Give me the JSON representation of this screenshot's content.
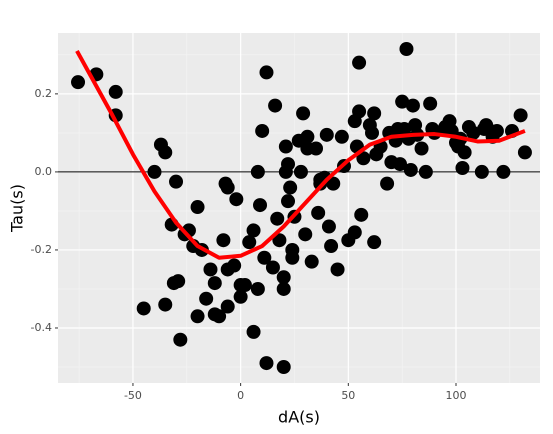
{
  "chart_data": {
    "type": "scatter",
    "x_label": "dA(s)",
    "y_label": "Tau(s)",
    "xlim": [
      -84.8,
      139
    ],
    "ylim": [
      -0.541,
      0.356
    ],
    "xticks": [
      -50,
      0,
      50,
      100
    ],
    "yticks": [
      -0.4,
      -0.2,
      {
        "value": 0,
        "label": "0.0"
      },
      0.2
    ],
    "xminor": [
      -75,
      -25,
      25,
      75,
      125
    ],
    "yminor": [
      -0.5,
      -0.3,
      -0.1,
      0.1,
      0.3
    ],
    "grid": true,
    "hline": 0,
    "points": {
      "color": "#000000",
      "x": [
        -75.5,
        -67,
        -58,
        -58,
        -45,
        -40,
        -37,
        -35,
        -35,
        -32,
        -31,
        -30,
        -29,
        -28,
        -26,
        -24,
        -22,
        -20,
        -20,
        -18,
        -16,
        -14,
        -12,
        -12,
        -10,
        -8,
        -7,
        -6,
        -6,
        -6,
        -3,
        -2,
        0,
        0,
        2,
        4,
        6,
        6,
        8,
        8,
        9,
        10,
        11,
        12,
        12,
        15,
        16,
        17,
        18,
        20,
        20,
        20,
        21,
        21,
        22,
        22,
        23,
        24,
        24,
        25,
        27,
        28,
        29,
        30,
        31,
        31,
        33,
        35,
        36,
        37,
        37,
        39,
        40,
        41,
        42,
        43,
        45,
        47,
        48,
        50,
        53,
        53,
        54,
        55,
        55,
        56,
        57,
        60,
        61,
        62,
        62,
        63,
        65,
        68,
        69,
        70,
        72,
        73,
        74,
        75,
        76,
        77,
        78,
        79,
        80,
        81,
        82,
        84,
        86,
        88,
        89,
        90,
        95,
        97,
        98,
        100,
        101,
        102,
        103,
        104,
        106,
        108,
        112,
        113,
        114,
        116,
        117,
        119,
        122,
        126,
        130,
        132
      ],
      "values": [
        0.23,
        0.25,
        0.205,
        0.145,
        -0.35,
        0.0,
        0.07,
        0.05,
        -0.34,
        -0.135,
        -0.285,
        -0.025,
        -0.28,
        -0.43,
        -0.16,
        -0.15,
        -0.19,
        -0.09,
        -0.37,
        -0.2,
        -0.325,
        -0.25,
        -0.285,
        -0.365,
        -0.37,
        -0.175,
        -0.03,
        -0.25,
        -0.04,
        -0.345,
        -0.24,
        -0.07,
        -0.29,
        -0.32,
        -0.29,
        -0.18,
        -0.41,
        -0.15,
        0.0,
        -0.3,
        -0.085,
        0.105,
        -0.22,
        0.255,
        -0.49,
        -0.245,
        0.17,
        -0.12,
        -0.175,
        -0.3,
        -0.27,
        -0.5,
        0.065,
        0.0,
        0.02,
        -0.075,
        -0.04,
        -0.2,
        -0.22,
        -0.115,
        0.08,
        0.0,
        0.15,
        -0.16,
        0.06,
        0.09,
        -0.23,
        0.06,
        -0.105,
        -0.02,
        -0.03,
        -0.015,
        0.095,
        -0.14,
        -0.19,
        -0.03,
        -0.25,
        0.09,
        0.015,
        -0.175,
        -0.155,
        0.13,
        0.065,
        0.155,
        0.28,
        -0.11,
        0.035,
        0.12,
        0.1,
        0.15,
        -0.18,
        0.045,
        0.065,
        -0.03,
        0.1,
        0.025,
        0.08,
        0.11,
        0.02,
        0.18,
        0.11,
        0.315,
        0.085,
        0.005,
        0.17,
        0.12,
        0.095,
        0.06,
        0.0,
        0.175,
        0.11,
        0.1,
        0.115,
        0.13,
        0.105,
        0.075,
        0.065,
        0.085,
        0.01,
        0.05,
        0.115,
        0.1,
        0.0,
        0.11,
        0.12,
        0.105,
        0.09,
        0.105,
        0.0,
        0.105,
        0.145,
        0.05
      ]
    },
    "smooth": {
      "color": "#ff0000",
      "x": [
        -76,
        -70,
        -60,
        -50,
        -40,
        -30,
        -20,
        -10,
        0,
        10,
        20,
        30,
        40,
        50,
        60,
        70,
        80,
        90,
        100,
        110,
        120,
        132
      ],
      "values": [
        0.31,
        0.25,
        0.15,
        0.045,
        -0.05,
        -0.13,
        -0.19,
        -0.22,
        -0.215,
        -0.19,
        -0.14,
        -0.08,
        -0.02,
        0.03,
        0.07,
        0.09,
        0.095,
        0.097,
        0.09,
        0.078,
        0.08,
        0.105
      ]
    }
  }
}
